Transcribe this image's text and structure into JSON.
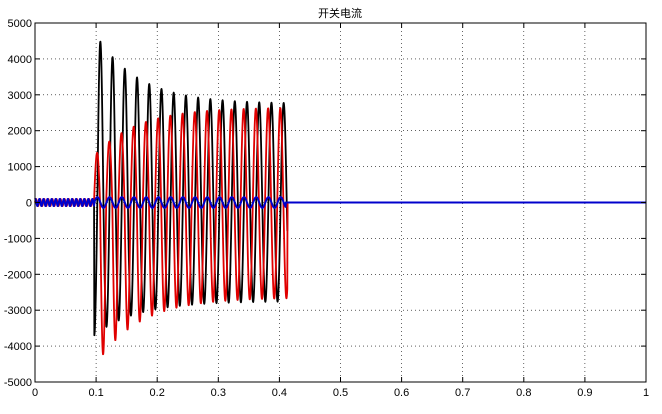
{
  "chart_data": {
    "type": "line",
    "title": "开关电流",
    "xlabel": "",
    "ylabel": "",
    "xlim": [
      0,
      1
    ],
    "ylim": [
      -5000,
      5000
    ],
    "xticks": [
      "0",
      "0.1",
      "0.2",
      "0.3",
      "0.4",
      "0.5",
      "0.6",
      "0.7",
      "0.8",
      "0.9",
      "1"
    ],
    "yticks": [
      "5000",
      "4000",
      "3000",
      "2000",
      "1000",
      "0",
      "-1000",
      "-2000",
      "-3000",
      "-4000",
      "-5000"
    ],
    "grid": true,
    "grid_style": "dotted",
    "legend": "none",
    "series": [
      {
        "color": "#000000",
        "description_points": {
          "x": [
            0,
            0.1,
            0.1,
            0.108,
            0.41,
            0.413,
            1
          ],
          "y": [
            0,
            0,
            -300,
            4750,
            2700,
            0,
            0
          ]
        },
        "oscillation_frequency_hz": 50,
        "peak_positive_start": 4750,
        "peak_negative_start": -3700,
        "steady_amplitude": 2750,
        "interval": [
          0.097,
          0.413
        ]
      },
      {
        "color": "#e00000",
        "oscillation_frequency_hz": 50,
        "peak_positive_start": 1300,
        "peak_negative_start": -4600,
        "steady_amplitude": 2650,
        "interval": [
          0.097,
          0.413
        ],
        "pre_fault_amplitude": 100
      },
      {
        "color": "#0000cc",
        "oscillation_frequency_hz": 50,
        "pre_fault_amplitude": 100,
        "post_fault_amplitude": 150,
        "interval": [
          0,
          0.41
        ],
        "after": 0
      }
    ]
  }
}
